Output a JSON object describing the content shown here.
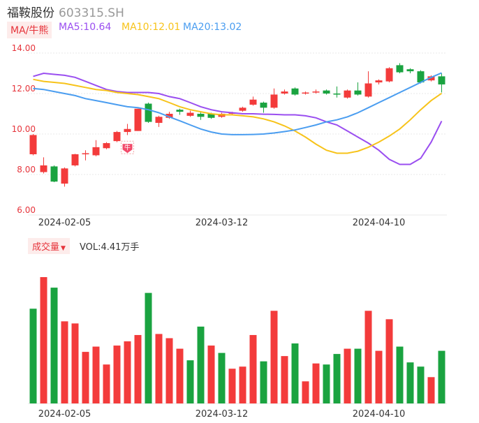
{
  "stock": {
    "name": "福鞍股份",
    "code": "603315.SH"
  },
  "legend": {
    "ma_tag": "MA/牛熊",
    "ma5": "MA5:10.64",
    "ma10": "MA10:12.01",
    "ma20": "MA20:13.02"
  },
  "volume": {
    "tag": "成交量",
    "text": "VOL:4.41万手"
  },
  "colors": {
    "up": "#f33b3b",
    "down": "#1aa340",
    "ma5": "#9a4ef0",
    "ma10": "#f7c31a",
    "ma20": "#4a9df0",
    "grid": "#e8e8e8",
    "axis_text": "#e6343b"
  },
  "chart_data": [
    {
      "type": "candlestick",
      "y_ticks": [
        "14.00",
        "12.00",
        "10.00",
        "8.00",
        "6.00"
      ],
      "ylim": [
        6,
        14
      ],
      "x_tick_labels": [
        {
          "index": 3,
          "label": "2024-02-05"
        },
        {
          "index": 18,
          "label": "2024-03-12"
        },
        {
          "index": 33,
          "label": "2024-04-10"
        }
      ],
      "candles": [
        {
          "o": 9.0,
          "c": 9.95,
          "h": 10.0,
          "l": 8.95
        },
        {
          "o": 8.12,
          "c": 8.45,
          "h": 8.85,
          "l": 8.05
        },
        {
          "o": 8.4,
          "c": 7.65,
          "h": 8.45,
          "l": 7.62
        },
        {
          "o": 7.55,
          "c": 8.3,
          "h": 8.35,
          "l": 7.4
        },
        {
          "o": 8.45,
          "c": 9.0,
          "h": 9.02,
          "l": 8.4
        },
        {
          "o": 9.0,
          "c": 9.05,
          "h": 9.2,
          "l": 8.7
        },
        {
          "o": 8.95,
          "c": 9.35,
          "h": 9.7,
          "l": 8.9
        },
        {
          "o": 9.3,
          "c": 9.55,
          "h": 9.6,
          "l": 9.25
        },
        {
          "o": 9.65,
          "c": 10.1,
          "h": 10.15,
          "l": 9.6
        },
        {
          "o": 10.1,
          "c": 10.25,
          "h": 10.5,
          "l": 9.95
        },
        {
          "o": 10.15,
          "c": 11.25,
          "h": 11.25,
          "l": 10.15
        },
        {
          "o": 11.5,
          "c": 10.6,
          "h": 11.55,
          "l": 10.55
        },
        {
          "o": 10.55,
          "c": 10.85,
          "h": 10.9,
          "l": 10.35
        },
        {
          "o": 10.8,
          "c": 11.0,
          "h": 11.1,
          "l": 10.75
        },
        {
          "o": 11.2,
          "c": 11.1,
          "h": 11.25,
          "l": 10.95
        },
        {
          "o": 10.9,
          "c": 11.05,
          "h": 11.15,
          "l": 10.85
        },
        {
          "o": 11.0,
          "c": 10.85,
          "h": 11.1,
          "l": 10.7
        },
        {
          "o": 11.0,
          "c": 10.8,
          "h": 11.05,
          "l": 10.75
        },
        {
          "o": 10.85,
          "c": 11.0,
          "h": 11.05,
          "l": 10.8
        },
        {
          "o": 11.0,
          "c": 11.05,
          "h": 11.1,
          "l": 10.95
        },
        {
          "o": 11.15,
          "c": 11.3,
          "h": 11.35,
          "l": 11.1
        },
        {
          "o": 11.45,
          "c": 11.7,
          "h": 11.85,
          "l": 11.4
        },
        {
          "o": 11.55,
          "c": 11.3,
          "h": 11.6,
          "l": 11.05
        },
        {
          "o": 11.3,
          "c": 11.95,
          "h": 12.25,
          "l": 11.25
        },
        {
          "o": 12.0,
          "c": 12.1,
          "h": 12.2,
          "l": 11.95
        },
        {
          "o": 12.25,
          "c": 11.95,
          "h": 12.3,
          "l": 11.9
        },
        {
          "o": 12.0,
          "c": 12.05,
          "h": 12.1,
          "l": 11.95
        },
        {
          "o": 12.05,
          "c": 12.1,
          "h": 12.2,
          "l": 12.0
        },
        {
          "o": 12.15,
          "c": 12.0,
          "h": 12.2,
          "l": 11.95
        },
        {
          "o": 12.0,
          "c": 11.95,
          "h": 12.35,
          "l": 11.8
        },
        {
          "o": 11.8,
          "c": 12.15,
          "h": 12.2,
          "l": 11.75
        },
        {
          "o": 12.15,
          "c": 11.95,
          "h": 12.55,
          "l": 11.9
        },
        {
          "o": 11.85,
          "c": 12.5,
          "h": 13.1,
          "l": 11.8
        },
        {
          "o": 12.55,
          "c": 12.65,
          "h": 12.7,
          "l": 12.45
        },
        {
          "o": 12.6,
          "c": 13.25,
          "h": 13.3,
          "l": 12.55
        },
        {
          "o": 13.4,
          "c": 13.05,
          "h": 13.5,
          "l": 13.0
        },
        {
          "o": 13.2,
          "c": 13.1,
          "h": 13.25,
          "l": 13.0
        },
        {
          "o": 13.1,
          "c": 12.55,
          "h": 13.15,
          "l": 12.5
        },
        {
          "o": 12.65,
          "c": 12.85,
          "h": 12.9,
          "l": 12.6
        },
        {
          "o": 12.85,
          "c": 12.45,
          "h": 13.0,
          "l": 12.05
        }
      ],
      "ma": {
        "ma5": [
          12.85,
          13.0,
          12.95,
          12.9,
          12.8,
          12.6,
          12.4,
          12.2,
          12.1,
          12.05,
          12.05,
          12.05,
          12.0,
          11.85,
          11.75,
          11.55,
          11.35,
          11.2,
          11.1,
          11.05,
          11.0,
          11.0,
          10.98,
          10.97,
          10.95,
          10.95,
          10.9,
          10.8,
          10.6,
          10.45,
          10.15,
          9.85,
          9.55,
          9.2,
          8.75,
          8.5,
          8.5,
          8.8,
          9.6,
          10.64
        ],
        "ma10": [
          12.7,
          12.6,
          12.55,
          12.5,
          12.4,
          12.3,
          12.2,
          12.15,
          12.05,
          12.0,
          11.95,
          11.85,
          11.75,
          11.55,
          11.35,
          11.2,
          11.1,
          11.0,
          10.95,
          10.95,
          10.9,
          10.85,
          10.75,
          10.6,
          10.4,
          10.15,
          9.85,
          9.5,
          9.2,
          9.05,
          9.05,
          9.15,
          9.35,
          9.6,
          9.9,
          10.25,
          10.7,
          11.2,
          11.65,
          12.01
        ],
        "ma20": [
          12.25,
          12.2,
          12.1,
          12.0,
          11.9,
          11.75,
          11.65,
          11.55,
          11.45,
          11.35,
          11.3,
          11.2,
          11.05,
          10.85,
          10.65,
          10.45,
          10.25,
          10.1,
          10.0,
          9.97,
          9.97,
          9.98,
          10.0,
          10.05,
          10.12,
          10.2,
          10.32,
          10.45,
          10.6,
          10.7,
          10.85,
          11.05,
          11.3,
          11.55,
          11.8,
          12.05,
          12.3,
          12.55,
          12.8,
          13.02
        ]
      },
      "annotation": {
        "index": 9,
        "text": "牛"
      }
    },
    {
      "type": "bar",
      "name": "成交量",
      "values": [
        9.0,
        12.0,
        11.0,
        7.8,
        7.6,
        4.9,
        5.4,
        3.7,
        5.5,
        5.9,
        6.5,
        10.5,
        6.6,
        6.2,
        5.2,
        4.1,
        7.3,
        5.5,
        4.8,
        3.3,
        3.5,
        6.5,
        4.0,
        8.8,
        4.5,
        5.7,
        2.1,
        3.8,
        3.7,
        4.7,
        5.2,
        5.2,
        8.8,
        5.0,
        8.0,
        5.4,
        3.9,
        3.5,
        2.5,
        5.0
      ],
      "up": [
        false,
        true,
        false,
        true,
        true,
        true,
        true,
        true,
        true,
        true,
        true,
        false,
        true,
        true,
        true,
        false,
        false,
        true,
        false,
        true,
        true,
        true,
        false,
        true,
        true,
        false,
        true,
        true,
        false,
        false,
        true,
        false,
        true,
        true,
        true,
        false,
        false,
        false,
        true,
        false
      ]
    }
  ]
}
